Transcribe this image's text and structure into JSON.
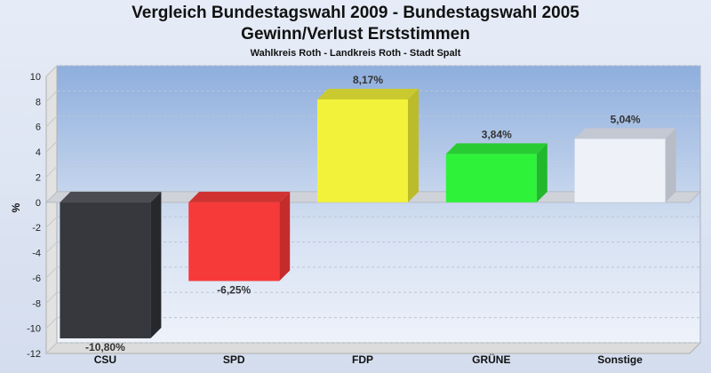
{
  "chart_data": {
    "type": "bar",
    "title": "Vergleich Bundestagswahl 2009 - Bundestagswahl 2005",
    "subtitle": "Gewinn/Verlust Erststimmen",
    "caption": "Wahlkreis Roth - Landkreis Roth - Stadt Spalt",
    "ylabel": "%",
    "ylim": [
      -12,
      10
    ],
    "yticks": [
      10,
      8,
      6,
      4,
      2,
      0,
      -2,
      -4,
      -6,
      -8,
      -10,
      -12
    ],
    "grid": true,
    "categories": [
      "CSU",
      "SPD",
      "FDP",
      "GRÜNE",
      "Sonstige"
    ],
    "values": [
      -10.8,
      -6.25,
      8.17,
      3.84,
      5.04
    ],
    "labels": [
      "-10,80%",
      "-6,25%",
      "8,17%",
      "3,84%",
      "5,04%"
    ],
    "colors": [
      "#36383d",
      "#f63a3a",
      "#f2f23a",
      "#2ef23a",
      "#eef1f8"
    ],
    "side_colors": [
      "#26282c",
      "#c42c2c",
      "#bcbc2a",
      "#22b82c",
      "#b8bcc6"
    ],
    "top_colors": [
      "#4a4c52",
      "#d03232",
      "#caca30",
      "#28cc32",
      "#c4c8d2"
    ]
  }
}
